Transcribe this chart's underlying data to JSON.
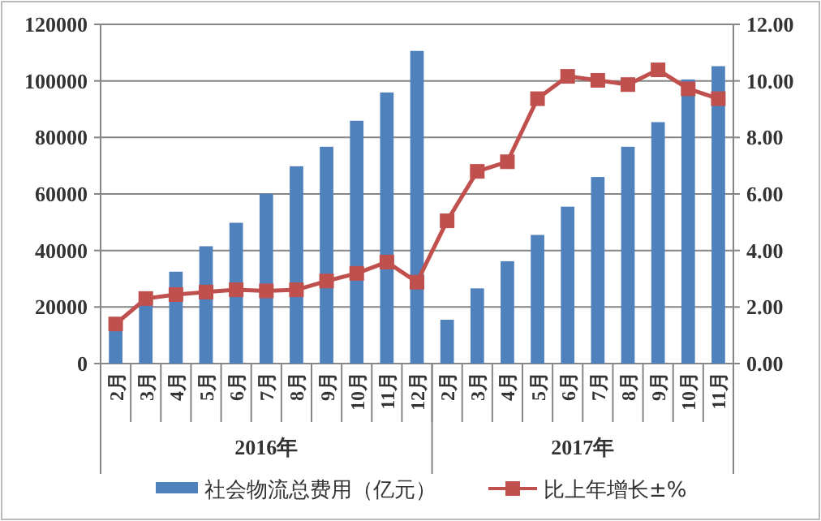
{
  "chart_data": {
    "type": "bar",
    "categories": [
      "2月",
      "3月",
      "4月",
      "5月",
      "6月",
      "7月",
      "8月",
      "9月",
      "10月",
      "11月",
      "12月",
      "2月",
      "3月",
      "4月",
      "5月",
      "6月",
      "7月",
      "8月",
      "9月",
      "10月",
      "11月"
    ],
    "series": [
      {
        "name": "社会物流总费用（亿元）",
        "color": "#4f81bd",
        "values": [
          12000,
          22000,
          32500,
          41500,
          49800,
          60100,
          69800,
          76700,
          85900,
          95900,
          110600,
          15500,
          26600,
          36200,
          45500,
          55500,
          66000,
          76700,
          85400,
          100500,
          105200
        ]
      },
      {
        "name": "比上年增长±%",
        "type": "line",
        "axis": "y2",
        "color": "#c0504d",
        "values": [
          1.4,
          2.3,
          2.44,
          2.53,
          2.61,
          2.57,
          2.61,
          2.92,
          3.19,
          3.59,
          2.88,
          5.05,
          6.8,
          7.14,
          9.37,
          10.16,
          10.02,
          9.87,
          10.39,
          9.72,
          9.37
        ]
      }
    ],
    "ylim": [
      0,
      120000
    ],
    "yticks": [
      0,
      20000,
      40000,
      60000,
      80000,
      100000,
      120000
    ],
    "y2lim": [
      0,
      12
    ],
    "y2ticks": [
      {
        "value": 0,
        "label": "0.00"
      },
      {
        "value": 2,
        "label": "2.00"
      },
      {
        "value": 4,
        "label": "4.00"
      },
      {
        "value": 6,
        "label": "6.00"
      },
      {
        "value": 8,
        "label": "8.00"
      },
      {
        "value": 10,
        "label": "10.00"
      },
      {
        "value": 12,
        "label": "12.00"
      }
    ],
    "annotations": [
      "2016年",
      "2017年"
    ],
    "grid": "y",
    "legend": "bottom",
    "marker": "square"
  }
}
